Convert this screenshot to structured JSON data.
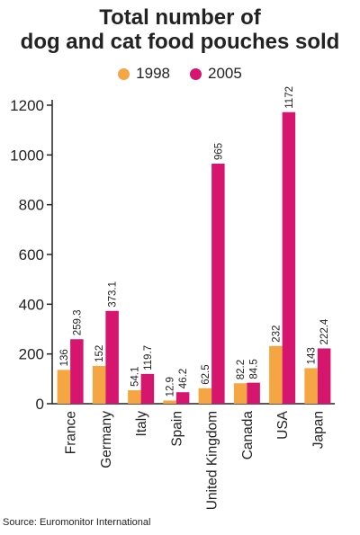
{
  "chart_data": {
    "type": "bar",
    "title_lines": [
      "Total number of",
      "dog and cat food pouches sold"
    ],
    "categories": [
      "France",
      "Germany",
      "Italy",
      "Spain",
      "United Kingdom",
      "Canada",
      "USA",
      "Japan"
    ],
    "series": [
      {
        "name": "1998",
        "color": "#f5a642",
        "values": [
          136,
          152,
          54.1,
          12.9,
          62.5,
          82.2,
          232,
          143
        ],
        "labels": [
          "136",
          "152",
          "54.1",
          "12.9",
          "62.5",
          "82.2",
          "232",
          "143"
        ]
      },
      {
        "name": "2005",
        "color": "#d6156f",
        "values": [
          259.3,
          373.1,
          119.7,
          46.2,
          965,
          84.5,
          1172,
          222.4
        ],
        "labels": [
          "259.3",
          "373.1",
          "119.7",
          "46.2",
          "965",
          "84.5",
          "1172",
          "222.4"
        ]
      }
    ],
    "ylim": [
      0,
      1200
    ],
    "yticks": [
      "0",
      "200",
      "400",
      "600",
      "800",
      "1000",
      "1200"
    ],
    "legend_position": "top-center",
    "grid": false
  },
  "source": "Source: Euromonitor International"
}
